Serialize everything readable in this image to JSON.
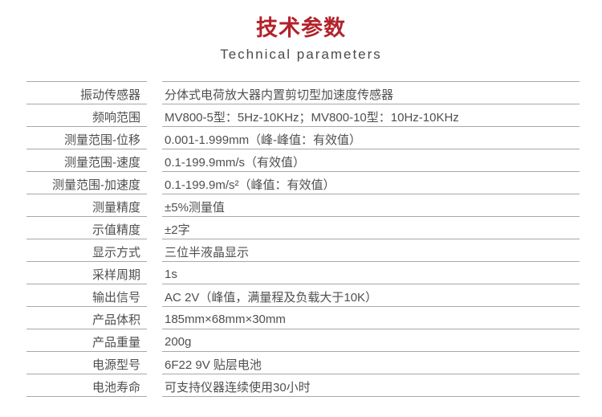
{
  "header": {
    "title": "技术参数",
    "subtitle": "Technical parameters",
    "title_color": "#b2222a",
    "subtitle_color": "#4a4a4a"
  },
  "table": {
    "line_color": "#a8a8a8",
    "text_color": "#4f4f4f",
    "rows": [
      {
        "label": "振动传感器",
        "value": "分体式电荷放大器内置剪切型加速度传感器"
      },
      {
        "label": "频响范围",
        "value": "MV800-5型：5Hz-10KHz；MV800-10型：10Hz-10KHz"
      },
      {
        "label": "测量范围-位移",
        "value": "0.001-1.999mm（峰-峰值：有效值）"
      },
      {
        "label": "测量范围-速度",
        "value": "0.1-199.9mm/s（有效值）"
      },
      {
        "label": "测量范围-加速度",
        "value": "0.1-199.9m/s²（峰值：有效值）"
      },
      {
        "label": "测量精度",
        "value": "±5%测量值"
      },
      {
        "label": "示值精度",
        "value": "±2字"
      },
      {
        "label": "显示方式",
        "value": "三位半液晶显示"
      },
      {
        "label": "采样周期",
        "value": "1s"
      },
      {
        "label": "输出信号",
        "value": "AC 2V（峰值，满量程及负载大于10K）"
      },
      {
        "label": "产品体积",
        "value": "185mm×68mm×30mm"
      },
      {
        "label": "产品重量",
        "value": "200g"
      },
      {
        "label": "电源型号",
        "value": "6F22 9V 贴层电池"
      },
      {
        "label": "电池寿命",
        "value": "可支持仪器连续使用30小时"
      }
    ]
  }
}
